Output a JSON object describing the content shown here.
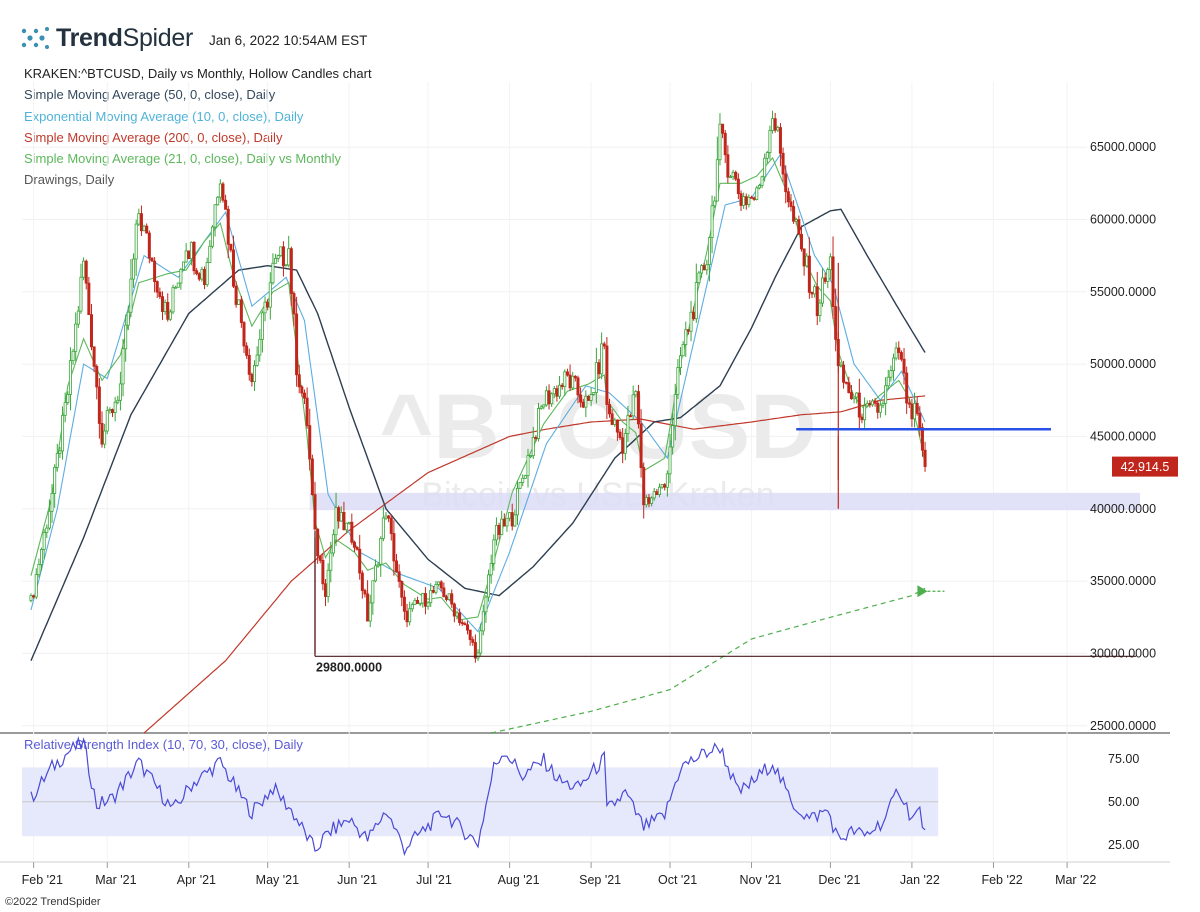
{
  "header": {
    "brand_bold": "Trend",
    "brand_thin": "Spider",
    "timestamp": "Jan 6, 2022 10:54AM EST"
  },
  "legend": {
    "title": "KRAKEN:^BTCUSD, Daily vs Monthly, Hollow Candles chart",
    "indicators": [
      {
        "label": "Simple Moving Average (50, 0, close), Daily",
        "color": "#34495e"
      },
      {
        "label": "Exponential Moving Average (10, 0, close), Daily",
        "color": "#4fb3d9"
      },
      {
        "label": "Simple Moving Average (200, 0, close), Daily",
        "color": "#c0392b"
      },
      {
        "label": "Simple Moving Average (21, 0, close), Daily vs Monthly",
        "color": "#5cb85c"
      },
      {
        "label": "Drawings, Daily",
        "color": "#555555"
      }
    ]
  },
  "watermark": {
    "symbol": "^BTCUSD",
    "name": "Bitcoin vs USD, Kraken"
  },
  "chart_data": {
    "type": "candlestick",
    "price_axis": {
      "ticks": [
        "65000.0000",
        "60000.0000",
        "55000.0000",
        "50000.0000",
        "45000.0000",
        "40000.0000",
        "35000.0000",
        "30000.0000",
        "25000.0000"
      ],
      "ylim": [
        24500,
        69500
      ]
    },
    "time_axis": {
      "labels": [
        "Feb '21",
        "Mar '21",
        "Apr '21",
        "May '21",
        "Jun '21",
        "Jul '21",
        "Aug '21",
        "Sep '21",
        "Oct '21",
        "Nov '21",
        "Dec '21",
        "Jan '22",
        "Feb '22",
        "Mar '22"
      ],
      "start": "2021-01-31",
      "end": "2022-03-12"
    },
    "last_price_label": "42,914.5",
    "last_price": 42914.5,
    "support_label": "29800.0000",
    "support_level": 29800,
    "resistance_level": 45500,
    "demand_zone": [
      39900,
      41100
    ],
    "price_keypoints": [
      [
        "2021-01-31",
        33500
      ],
      [
        "2021-02-08",
        41000
      ],
      [
        "2021-02-14",
        48000
      ],
      [
        "2021-02-20",
        57000
      ],
      [
        "2021-02-27",
        45000
      ],
      [
        "2021-03-06",
        48500
      ],
      [
        "2021-03-13",
        60500
      ],
      [
        "2021-03-24",
        53000
      ],
      [
        "2021-03-31",
        58500
      ],
      [
        "2021-04-07",
        56000
      ],
      [
        "2021-04-13",
        63500
      ],
      [
        "2021-04-18",
        56000
      ],
      [
        "2021-04-25",
        49000
      ],
      [
        "2021-05-03",
        56500
      ],
      [
        "2021-05-09",
        58000
      ],
      [
        "2021-05-12",
        50000
      ],
      [
        "2021-05-16",
        46000
      ],
      [
        "2021-05-19",
        38000
      ],
      [
        "2021-05-23",
        34500
      ],
      [
        "2021-05-27",
        39500
      ],
      [
        "2021-06-03",
        38000
      ],
      [
        "2021-06-08",
        32500
      ],
      [
        "2021-06-15",
        40000
      ],
      [
        "2021-06-22",
        32500
      ],
      [
        "2021-07-01",
        34000
      ],
      [
        "2021-07-06",
        34500
      ],
      [
        "2021-07-13",
        32500
      ],
      [
        "2021-07-20",
        29800
      ],
      [
        "2021-07-26",
        38000
      ],
      [
        "2021-08-02",
        39500
      ],
      [
        "2021-08-14",
        47500
      ],
      [
        "2021-08-23",
        49000
      ],
      [
        "2021-08-31",
        47000
      ],
      [
        "2021-09-06",
        51500
      ],
      [
        "2021-09-07",
        47000
      ],
      [
        "2021-09-13",
        44500
      ],
      [
        "2021-09-18",
        48000
      ],
      [
        "2021-09-21",
        40500
      ],
      [
        "2021-09-29",
        41500
      ],
      [
        "2021-10-05",
        50500
      ],
      [
        "2021-10-15",
        57500
      ],
      [
        "2021-10-20",
        65500
      ],
      [
        "2021-10-28",
        61500
      ],
      [
        "2021-11-03",
        61500
      ],
      [
        "2021-11-09",
        67500
      ],
      [
        "2021-11-16",
        60500
      ],
      [
        "2021-11-22",
        56500
      ],
      [
        "2021-11-26",
        54000
      ],
      [
        "2021-12-01",
        57000
      ],
      [
        "2021-12-04",
        49500
      ],
      [
        "2021-12-10",
        47500
      ],
      [
        "2021-12-14",
        46500
      ],
      [
        "2021-12-20",
        47000
      ],
      [
        "2021-12-27",
        51000
      ],
      [
        "2021-12-31",
        46500
      ],
      [
        "2022-01-03",
        46500
      ],
      [
        "2022-01-05",
        43500
      ],
      [
        "2022-01-06",
        42914.5
      ]
    ],
    "moving_averages": {
      "sma_50": [
        [
          "2021-01-31",
          29500
        ],
        [
          "2021-02-20",
          38000
        ],
        [
          "2021-03-10",
          46500
        ],
        [
          "2021-04-01",
          53500
        ],
        [
          "2021-04-20",
          56500
        ],
        [
          "2021-05-01",
          56800
        ],
        [
          "2021-05-12",
          56500
        ],
        [
          "2021-05-20",
          53500
        ],
        [
          "2021-06-01",
          47000
        ],
        [
          "2021-06-15",
          40000
        ],
        [
          "2021-07-01",
          36500
        ],
        [
          "2021-07-15",
          34500
        ],
        [
          "2021-07-28",
          34000
        ],
        [
          "2021-08-10",
          36000
        ],
        [
          "2021-08-25",
          39000
        ],
        [
          "2021-09-10",
          43500
        ],
        [
          "2021-09-25",
          46000
        ],
        [
          "2021-10-05",
          46300
        ],
        [
          "2021-10-20",
          48500
        ],
        [
          "2021-11-01",
          52500
        ],
        [
          "2021-11-10",
          56000
        ],
        [
          "2021-11-20",
          59500
        ],
        [
          "2021-12-01",
          60600
        ],
        [
          "2021-12-05",
          60700
        ],
        [
          "2021-12-15",
          57500
        ],
        [
          "2021-12-28",
          53500
        ],
        [
          "2022-01-06",
          50800
        ]
      ],
      "ema_10": [
        [
          "2021-01-31",
          33000
        ],
        [
          "2021-02-10",
          40000
        ],
        [
          "2021-02-20",
          50000
        ],
        [
          "2021-03-01",
          49000
        ],
        [
          "2021-03-15",
          57500
        ],
        [
          "2021-03-28",
          56000
        ],
        [
          "2021-04-15",
          60500
        ],
        [
          "2021-04-25",
          54000
        ],
        [
          "2021-05-08",
          56000
        ],
        [
          "2021-05-15",
          53000
        ],
        [
          "2021-05-24",
          41000
        ],
        [
          "2021-06-05",
          37000
        ],
        [
          "2021-06-20",
          35500
        ],
        [
          "2021-07-05",
          34500
        ],
        [
          "2021-07-20",
          31500
        ],
        [
          "2021-08-01",
          37000
        ],
        [
          "2021-08-15",
          44500
        ],
        [
          "2021-08-30",
          48500
        ],
        [
          "2021-09-08",
          48000
        ],
        [
          "2021-09-20",
          46000
        ],
        [
          "2021-09-30",
          43500
        ],
        [
          "2021-10-10",
          51500
        ],
        [
          "2021-10-22",
          61000
        ],
        [
          "2021-11-01",
          61500
        ],
        [
          "2021-11-12",
          64500
        ],
        [
          "2021-11-25",
          57500
        ],
        [
          "2021-12-02",
          55500
        ],
        [
          "2021-12-10",
          50000
        ],
        [
          "2021-12-20",
          47500
        ],
        [
          "2021-12-28",
          49500
        ],
        [
          "2022-01-06",
          46000
        ]
      ],
      "sma_200": [
        [
          "2021-03-15",
          24500
        ],
        [
          "2021-04-15",
          29500
        ],
        [
          "2021-05-10",
          35000
        ],
        [
          "2021-06-01",
          38500
        ],
        [
          "2021-07-01",
          42500
        ],
        [
          "2021-08-01",
          45000
        ],
        [
          "2021-08-15",
          45500
        ],
        [
          "2021-09-01",
          46000
        ],
        [
          "2021-09-20",
          46200
        ],
        [
          "2021-10-10",
          45500
        ],
        [
          "2021-11-01",
          46000
        ],
        [
          "2021-11-20",
          46500
        ],
        [
          "2021-12-05",
          46700
        ],
        [
          "2021-12-20",
          47500
        ],
        [
          "2022-01-06",
          47800
        ]
      ],
      "sma_21_monthly": [
        [
          "2021-07-25",
          24500
        ],
        [
          "2021-09-01",
          26000
        ],
        [
          "2021-10-01",
          27500
        ],
        [
          "2021-11-01",
          31000
        ],
        [
          "2021-12-01",
          32500
        ],
        [
          "2022-01-01",
          34000
        ],
        [
          "2022-01-06",
          34500
        ]
      ]
    },
    "rsi": {
      "label": "Relative Strength Index (10, 70, 30, close), Daily",
      "ticks": [
        "75.00",
        "50.00",
        "25.00"
      ],
      "ylim": [
        15,
        90
      ],
      "overbought": 70,
      "oversold": 30,
      "keypoints": [
        [
          "2021-01-31",
          52
        ],
        [
          "2021-02-08",
          70
        ],
        [
          "2021-02-15",
          80
        ],
        [
          "2021-02-20",
          84
        ],
        [
          "2021-02-25",
          48
        ],
        [
          "2021-03-03",
          52
        ],
        [
          "2021-03-13",
          73
        ],
        [
          "2021-03-20",
          58
        ],
        [
          "2021-03-26",
          45
        ],
        [
          "2021-04-02",
          60
        ],
        [
          "2021-04-13",
          73
        ],
        [
          "2021-04-20",
          55
        ],
        [
          "2021-04-25",
          44
        ],
        [
          "2021-05-03",
          58
        ],
        [
          "2021-05-10",
          45
        ],
        [
          "2021-05-19",
          22
        ],
        [
          "2021-05-24",
          32
        ],
        [
          "2021-06-01",
          40
        ],
        [
          "2021-06-08",
          28
        ],
        [
          "2021-06-15",
          45
        ],
        [
          "2021-06-22",
          23
        ],
        [
          "2021-07-01",
          36
        ],
        [
          "2021-07-07",
          44
        ],
        [
          "2021-07-13",
          35
        ],
        [
          "2021-07-20",
          26
        ],
        [
          "2021-07-26",
          70
        ],
        [
          "2021-07-30",
          80
        ],
        [
          "2021-08-06",
          65
        ],
        [
          "2021-08-14",
          74
        ],
        [
          "2021-08-20",
          62
        ],
        [
          "2021-08-27",
          58
        ],
        [
          "2021-09-06",
          75
        ],
        [
          "2021-09-07",
          45
        ],
        [
          "2021-09-14",
          55
        ],
        [
          "2021-09-21",
          35
        ],
        [
          "2021-09-29",
          42
        ],
        [
          "2021-10-05",
          70
        ],
        [
          "2021-10-14",
          78
        ],
        [
          "2021-10-20",
          82
        ],
        [
          "2021-10-27",
          55
        ],
        [
          "2021-11-02",
          62
        ],
        [
          "2021-11-09",
          73
        ],
        [
          "2021-11-16",
          50
        ],
        [
          "2021-11-23",
          40
        ],
        [
          "2021-11-30",
          45
        ],
        [
          "2021-12-04",
          28
        ],
        [
          "2021-12-10",
          33
        ],
        [
          "2021-12-14",
          30
        ],
        [
          "2021-12-22",
          40
        ],
        [
          "2021-12-27",
          58
        ],
        [
          "2022-01-01",
          40
        ],
        [
          "2022-01-04",
          45
        ],
        [
          "2022-01-06",
          30
        ]
      ]
    },
    "copyright": "©2022 TrendSpider"
  }
}
